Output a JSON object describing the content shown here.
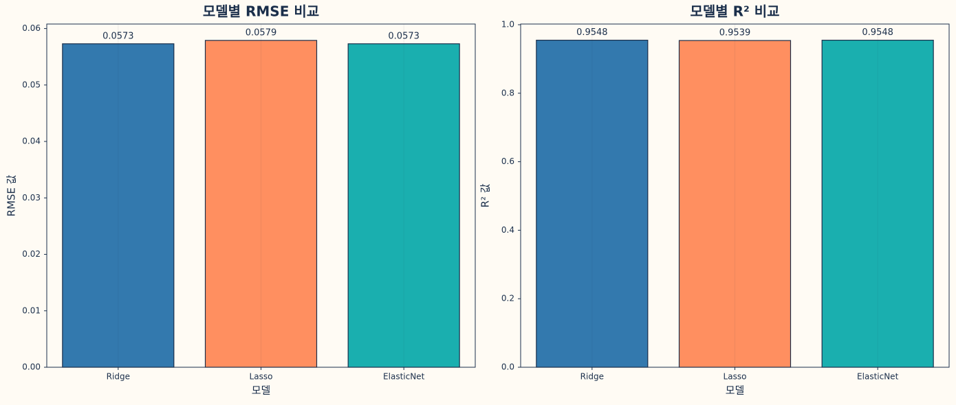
{
  "chart_data": [
    {
      "type": "bar",
      "title": "모델별 RMSE 비교",
      "xlabel": "모델",
      "ylabel": "RMSE 값",
      "categories": [
        "Ridge",
        "Lasso",
        "ElasticNet"
      ],
      "values": [
        0.0573,
        0.0579,
        0.0573
      ],
      "colors": [
        "#3379ae",
        "#ff8f60",
        "#1aafaf"
      ],
      "ylim": [
        0,
        0.0608
      ],
      "yticks": [
        {
          "value": 0,
          "label": "0.00"
        },
        0.01,
        0.02,
        0.03,
        0.04,
        0.05,
        0.06
      ],
      "grid": true
    },
    {
      "type": "bar",
      "title": "모델별 R² 비교",
      "xlabel": "모델",
      "ylabel": "R² 값",
      "categories": [
        "Ridge",
        "Lasso",
        "ElasticNet"
      ],
      "values": [
        0.9548,
        0.9539,
        0.9548
      ],
      "colors": [
        "#3379ae",
        "#ff8f60",
        "#1aafaf"
      ],
      "ylim": [
        0,
        1.002
      ],
      "yticks": [
        {
          "value": 0,
          "label": "0.0"
        },
        0.2,
        0.4,
        0.6,
        0.8,
        {
          "value": 1,
          "label": "1.0"
        }
      ],
      "grid": true
    }
  ]
}
